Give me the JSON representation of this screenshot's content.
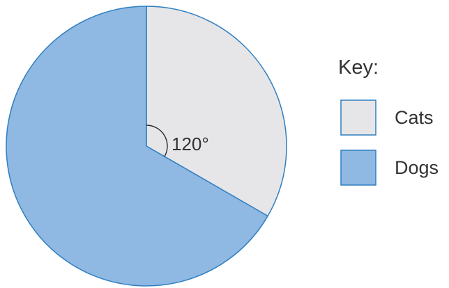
{
  "chart_data": {
    "type": "pie",
    "title": "",
    "categories": [
      "Cats",
      "Dogs"
    ],
    "values": [
      120,
      240
    ],
    "unit": "degrees",
    "angle_annotation": "120°",
    "legend_title": "Key:",
    "legend_placement": "right",
    "colors": {
      "Cats": "#e6e6e8",
      "Dogs": "#8fb8e3",
      "outline": "#2f7fc1"
    }
  }
}
